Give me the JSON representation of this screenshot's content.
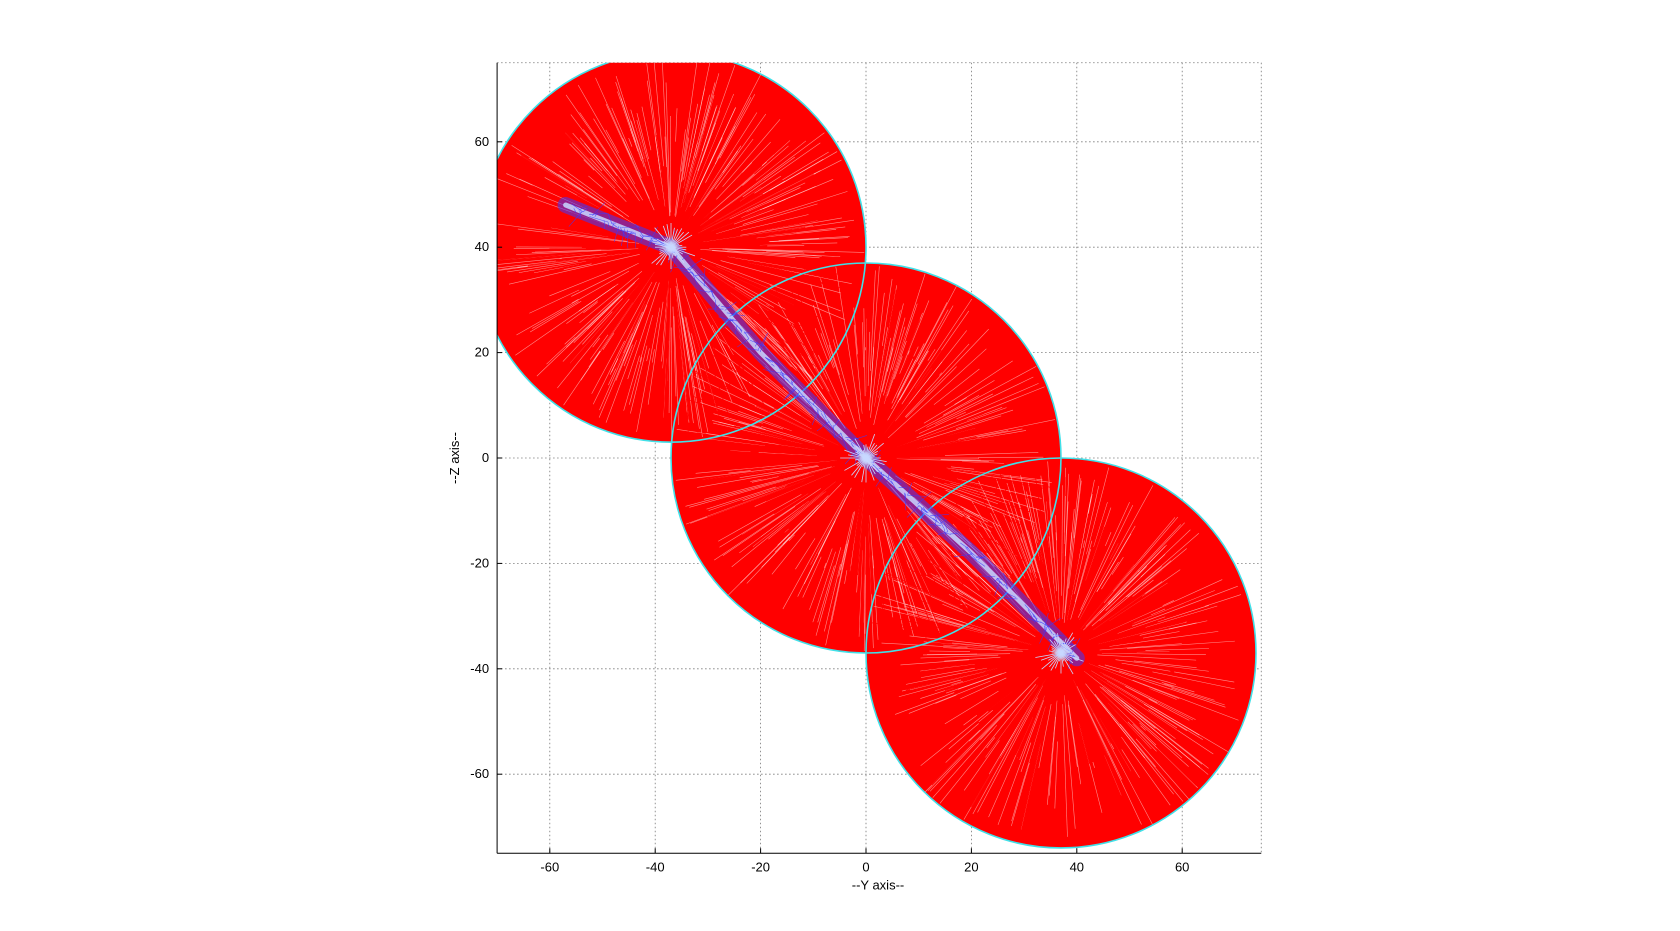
{
  "chart_data": {
    "type": "scatter",
    "title": "",
    "xlabel": "--Y axis--",
    "ylabel": "--Z axis--",
    "xlim": [
      -70,
      75
    ],
    "ylim": [
      -75,
      75
    ],
    "xticks": [
      -60,
      -40,
      -20,
      0,
      20,
      40,
      60
    ],
    "yticks": [
      -60,
      -40,
      -20,
      0,
      20,
      40,
      60
    ],
    "grid": true,
    "legend": "none",
    "colors": {
      "fill": "#ff0000",
      "rays": "#ff0000",
      "mesh_lines": "#ffffff",
      "boundary": "#40e0e8",
      "inner_mesh": "#3a3aff",
      "inner_highlight": "#c8d8ff"
    },
    "series": [
      {
        "name": "",
        "shape": "disc",
        "centers_yz": [
          [
            -37,
            40
          ],
          [
            0,
            0
          ],
          [
            37,
            -37
          ]
        ],
        "radius": 37
      },
      {
        "name": "",
        "shape": "inner_strip",
        "points_yz": [
          [
            -57,
            48
          ],
          [
            -37,
            40
          ],
          [
            -20,
            20
          ],
          [
            0,
            0
          ],
          [
            20,
            -18
          ],
          [
            40,
            -38
          ]
        ]
      }
    ]
  }
}
